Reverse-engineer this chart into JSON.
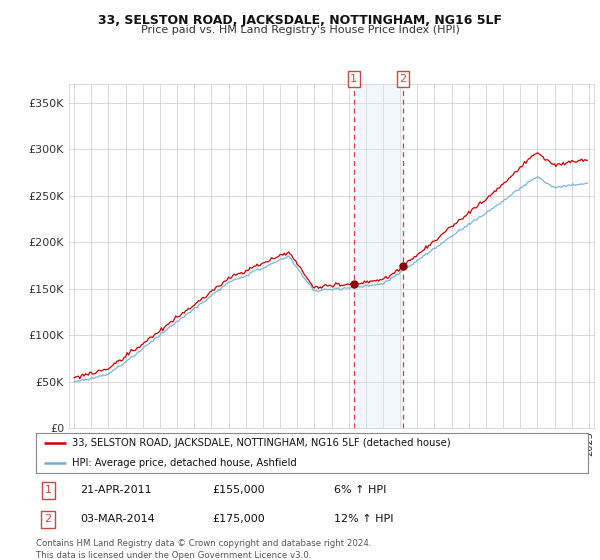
{
  "title": "33, SELSTON ROAD, JACKSDALE, NOTTINGHAM, NG16 5LF",
  "subtitle": "Price paid vs. HM Land Registry's House Price Index (HPI)",
  "legend_line1": "33, SELSTON ROAD, JACKSDALE, NOTTINGHAM, NG16 5LF (detached house)",
  "legend_line2": "HPI: Average price, detached house, Ashfield",
  "transaction1_date": "21-APR-2011",
  "transaction1_price": 155000,
  "transaction1_price_str": "£155,000",
  "transaction1_pct": "6% ↑ HPI",
  "transaction2_date": "03-MAR-2014",
  "transaction2_price": 175000,
  "transaction2_price_str": "£175,000",
  "transaction2_pct": "12% ↑ HPI",
  "footer": "Contains HM Land Registry data © Crown copyright and database right 2024.\nThis data is licensed under the Open Government Licence v3.0.",
  "hpi_color": "#6baed6",
  "property_color": "#cc0000",
  "vline_color": "#cc4444",
  "shade_color": "#dce9f5",
  "background_color": "#ffffff",
  "grid_color": "#cccccc",
  "ylim_low": 0,
  "ylim_high": 370000,
  "yticks": [
    0,
    50000,
    100000,
    150000,
    200000,
    250000,
    300000,
    350000
  ],
  "xlim_low": 1994.7,
  "xlim_high": 2025.3,
  "t1_x": 2011.3,
  "t2_x": 2014.17,
  "t1_price": 155000,
  "t2_price": 175000
}
